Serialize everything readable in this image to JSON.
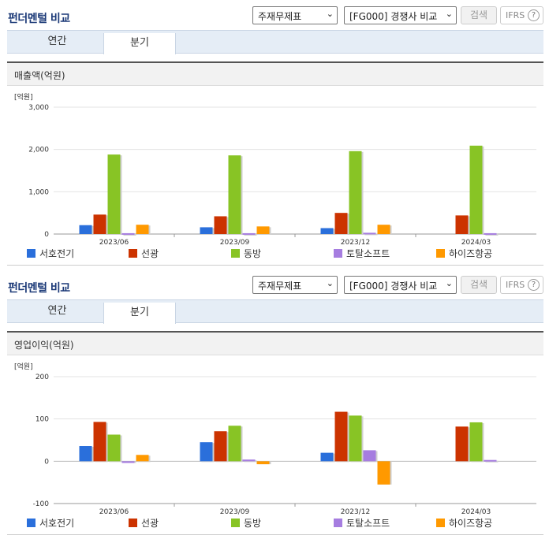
{
  "sections": [
    {
      "title": "펀더멘털 비교",
      "select1": "주재무제표",
      "select2": "[FG000] 경쟁사 비교",
      "search_label": "검색",
      "ifrs_label": "IFRS",
      "help_label": "?",
      "tabs": [
        "연간",
        "분기"
      ],
      "active_tab": 1,
      "chart_title": "매출액(억원)"
    },
    {
      "title": "펀더멘털 비교",
      "select1": "주재무제표",
      "select2": "[FG000] 경쟁사 비교",
      "search_label": "검색",
      "ifrs_label": "IFRS",
      "help_label": "?",
      "tabs": [
        "연간",
        "분기"
      ],
      "active_tab": 1,
      "chart_title": "영업이익(억원)"
    }
  ],
  "chart_data": [
    {
      "type": "bar",
      "title": "매출액(억원)",
      "unit_label": "[억원]",
      "categories": [
        "2023/06",
        "2023/09",
        "2023/12",
        "2024/03"
      ],
      "ylim": [
        0,
        3000
      ],
      "yticks": [
        0,
        1000,
        2000,
        3000
      ],
      "ytick_labels": [
        "0",
        "1,000",
        "2,000",
        "3,000"
      ],
      "grid": true,
      "legend": "bottom",
      "series": [
        {
          "name": "서호전기",
          "color": "#2a6fdb",
          "values": [
            210,
            160,
            140,
            null
          ]
        },
        {
          "name": "선광",
          "color": "#cc3300",
          "values": [
            460,
            420,
            500,
            440
          ]
        },
        {
          "name": "동방",
          "color": "#88c425",
          "values": [
            1880,
            1860,
            1960,
            2090
          ]
        },
        {
          "name": "토탈소프트",
          "color": "#a67de0",
          "values": [
            20,
            20,
            30,
            20
          ]
        },
        {
          "name": "하이즈항공",
          "color": "#ff9900",
          "values": [
            220,
            180,
            220,
            null
          ]
        }
      ]
    },
    {
      "type": "bar",
      "title": "영업이익(억원)",
      "unit_label": "[억원]",
      "categories": [
        "2023/06",
        "2023/09",
        "2023/12",
        "2024/03"
      ],
      "ylim": [
        -100,
        200
      ],
      "yticks": [
        -100,
        0,
        100,
        200
      ],
      "ytick_labels": [
        "-100",
        "0",
        "100",
        "200"
      ],
      "grid": true,
      "legend": "bottom",
      "series": [
        {
          "name": "서호전기",
          "color": "#2a6fdb",
          "values": [
            36,
            45,
            20,
            null
          ]
        },
        {
          "name": "선광",
          "color": "#cc3300",
          "values": [
            93,
            71,
            117,
            82
          ]
        },
        {
          "name": "동방",
          "color": "#88c425",
          "values": [
            63,
            84,
            108,
            92
          ]
        },
        {
          "name": "토탈소프트",
          "color": "#a67de0",
          "values": [
            -4,
            4,
            26,
            3
          ]
        },
        {
          "name": "하이즈항공",
          "color": "#ff9900",
          "values": [
            15,
            -7,
            -55,
            null
          ]
        }
      ]
    }
  ]
}
